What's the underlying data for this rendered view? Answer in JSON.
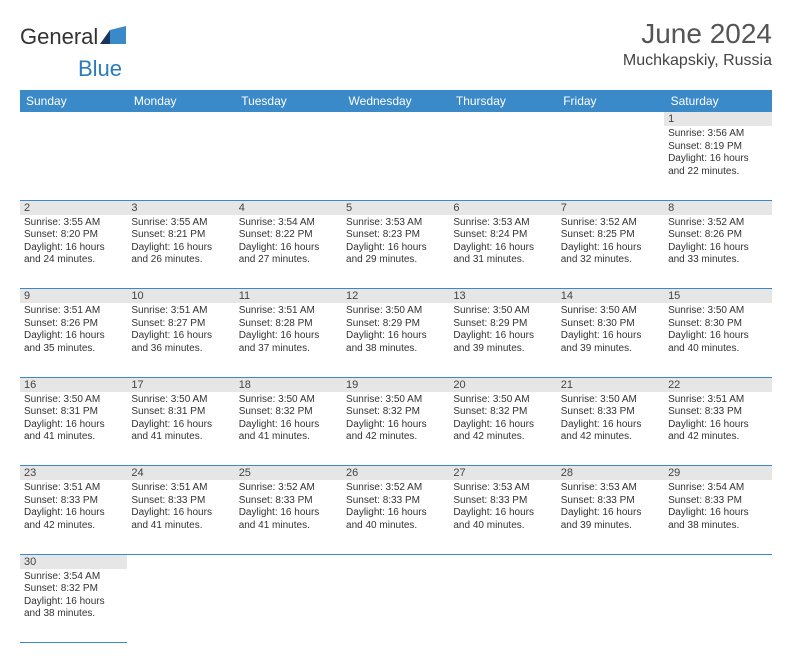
{
  "brand": {
    "part1": "General",
    "part2": "Blue"
  },
  "title": "June 2024",
  "location": "Muchkapskiy, Russia",
  "colors": {
    "header_bg": "#3a89c9",
    "header_text": "#ffffff",
    "daynum_bg": "#e6e6e6",
    "rule": "#3a89c9",
    "text": "#333333",
    "brand_blue": "#2b7bbf"
  },
  "weekdays": [
    "Sunday",
    "Monday",
    "Tuesday",
    "Wednesday",
    "Thursday",
    "Friday",
    "Saturday"
  ],
  "weeks": [
    [
      null,
      null,
      null,
      null,
      null,
      null,
      {
        "n": "1",
        "sunrise": "3:56 AM",
        "sunset": "8:19 PM",
        "daylight": "16 hours and 22 minutes."
      }
    ],
    [
      {
        "n": "2",
        "sunrise": "3:55 AM",
        "sunset": "8:20 PM",
        "daylight": "16 hours and 24 minutes."
      },
      {
        "n": "3",
        "sunrise": "3:55 AM",
        "sunset": "8:21 PM",
        "daylight": "16 hours and 26 minutes."
      },
      {
        "n": "4",
        "sunrise": "3:54 AM",
        "sunset": "8:22 PM",
        "daylight": "16 hours and 27 minutes."
      },
      {
        "n": "5",
        "sunrise": "3:53 AM",
        "sunset": "8:23 PM",
        "daylight": "16 hours and 29 minutes."
      },
      {
        "n": "6",
        "sunrise": "3:53 AM",
        "sunset": "8:24 PM",
        "daylight": "16 hours and 31 minutes."
      },
      {
        "n": "7",
        "sunrise": "3:52 AM",
        "sunset": "8:25 PM",
        "daylight": "16 hours and 32 minutes."
      },
      {
        "n": "8",
        "sunrise": "3:52 AM",
        "sunset": "8:26 PM",
        "daylight": "16 hours and 33 minutes."
      }
    ],
    [
      {
        "n": "9",
        "sunrise": "3:51 AM",
        "sunset": "8:26 PM",
        "daylight": "16 hours and 35 minutes."
      },
      {
        "n": "10",
        "sunrise": "3:51 AM",
        "sunset": "8:27 PM",
        "daylight": "16 hours and 36 minutes."
      },
      {
        "n": "11",
        "sunrise": "3:51 AM",
        "sunset": "8:28 PM",
        "daylight": "16 hours and 37 minutes."
      },
      {
        "n": "12",
        "sunrise": "3:50 AM",
        "sunset": "8:29 PM",
        "daylight": "16 hours and 38 minutes."
      },
      {
        "n": "13",
        "sunrise": "3:50 AM",
        "sunset": "8:29 PM",
        "daylight": "16 hours and 39 minutes."
      },
      {
        "n": "14",
        "sunrise": "3:50 AM",
        "sunset": "8:30 PM",
        "daylight": "16 hours and 39 minutes."
      },
      {
        "n": "15",
        "sunrise": "3:50 AM",
        "sunset": "8:30 PM",
        "daylight": "16 hours and 40 minutes."
      }
    ],
    [
      {
        "n": "16",
        "sunrise": "3:50 AM",
        "sunset": "8:31 PM",
        "daylight": "16 hours and 41 minutes."
      },
      {
        "n": "17",
        "sunrise": "3:50 AM",
        "sunset": "8:31 PM",
        "daylight": "16 hours and 41 minutes."
      },
      {
        "n": "18",
        "sunrise": "3:50 AM",
        "sunset": "8:32 PM",
        "daylight": "16 hours and 41 minutes."
      },
      {
        "n": "19",
        "sunrise": "3:50 AM",
        "sunset": "8:32 PM",
        "daylight": "16 hours and 42 minutes."
      },
      {
        "n": "20",
        "sunrise": "3:50 AM",
        "sunset": "8:32 PM",
        "daylight": "16 hours and 42 minutes."
      },
      {
        "n": "21",
        "sunrise": "3:50 AM",
        "sunset": "8:33 PM",
        "daylight": "16 hours and 42 minutes."
      },
      {
        "n": "22",
        "sunrise": "3:51 AM",
        "sunset": "8:33 PM",
        "daylight": "16 hours and 42 minutes."
      }
    ],
    [
      {
        "n": "23",
        "sunrise": "3:51 AM",
        "sunset": "8:33 PM",
        "daylight": "16 hours and 42 minutes."
      },
      {
        "n": "24",
        "sunrise": "3:51 AM",
        "sunset": "8:33 PM",
        "daylight": "16 hours and 41 minutes."
      },
      {
        "n": "25",
        "sunrise": "3:52 AM",
        "sunset": "8:33 PM",
        "daylight": "16 hours and 41 minutes."
      },
      {
        "n": "26",
        "sunrise": "3:52 AM",
        "sunset": "8:33 PM",
        "daylight": "16 hours and 40 minutes."
      },
      {
        "n": "27",
        "sunrise": "3:53 AM",
        "sunset": "8:33 PM",
        "daylight": "16 hours and 40 minutes."
      },
      {
        "n": "28",
        "sunrise": "3:53 AM",
        "sunset": "8:33 PM",
        "daylight": "16 hours and 39 minutes."
      },
      {
        "n": "29",
        "sunrise": "3:54 AM",
        "sunset": "8:33 PM",
        "daylight": "16 hours and 38 minutes."
      }
    ],
    [
      {
        "n": "30",
        "sunrise": "3:54 AM",
        "sunset": "8:32 PM",
        "daylight": "16 hours and 38 minutes."
      },
      null,
      null,
      null,
      null,
      null,
      null
    ]
  ],
  "labels": {
    "sunrise": "Sunrise: ",
    "sunset": "Sunset: ",
    "daylight": "Daylight: "
  }
}
